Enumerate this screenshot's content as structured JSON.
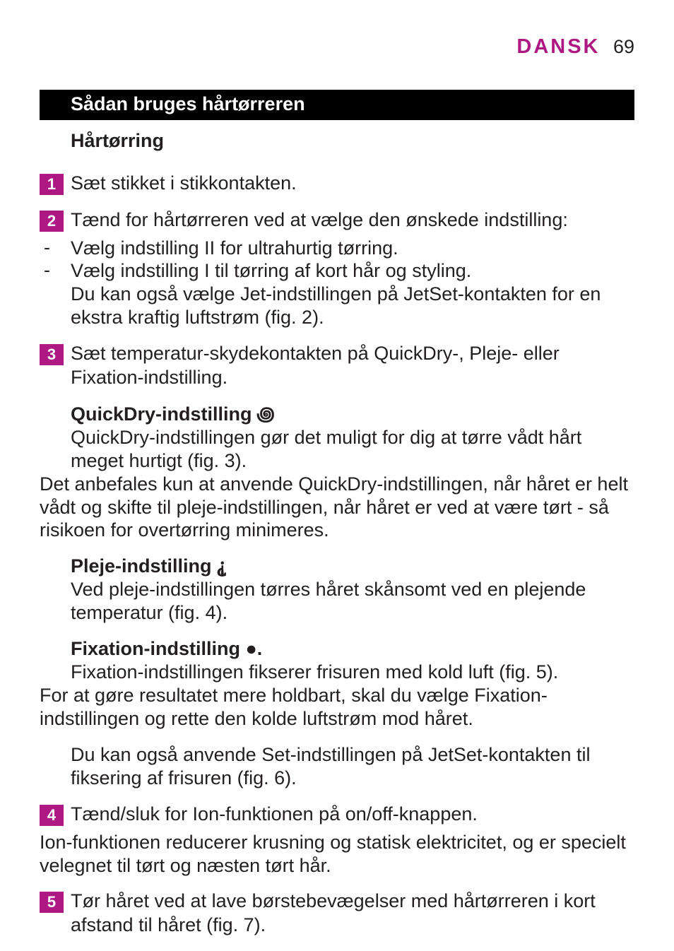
{
  "header": {
    "brand": "DANSK",
    "page_number": "69",
    "brand_color": "#ae1883",
    "text_color": "#231f20",
    "background_color": "#ffffff",
    "brand_fontsize": 29,
    "page_fontsize": 27
  },
  "section_bar": {
    "title": "Sådan bruges hårtørreren",
    "background_color": "#000000",
    "text_color": "#ffffff",
    "fontsize": 27
  },
  "subheading": {
    "text": "Hårtørring",
    "fontsize": 27
  },
  "steps": {
    "step1": {
      "num": "1",
      "text": "Sæt stikket i stikkontakten."
    },
    "step2": {
      "num": "2",
      "text": "Tænd for hårtørreren ved at vælge den ønskede indstilling:",
      "bullets": [
        "Vælg indstilling II for ultrahurtig tørring.",
        "Vælg indstilling I til tørring af kort hår og styling."
      ],
      "after_bullets": "Du kan også vælge Jet-indstillingen på JetSet-kontakten for en ekstra kraftig luftstrøm (fig. 2)."
    },
    "step3": {
      "num": "3",
      "text": "Sæt temperatur-skydekontakten på QuickDry-, Pleje- eller Fixation-indstilling."
    },
    "quickdry": {
      "title_prefix": "QuickDry-indstilling",
      "title_icon": " ꩜",
      "body": "QuickDry-indstillingen gør det muligt for dig at tørre vådt hårt meget hurtigt (fig. 3).",
      "flush": "Det anbefales kun at anvende QuickDry-indstillingen, når håret er helt vådt og skifte til pleje-indstillingen, når håret er ved at være tørt - så risikoen for overtørring minimeres."
    },
    "pleje": {
      "title_prefix": "Pleje-indstilling",
      "title_icon": " ⸘",
      "body": "Ved pleje-indstillingen tørres håret skånsomt ved en plejende temperatur (fig. 4)."
    },
    "fixation": {
      "title_prefix": "Fixation-indstilling",
      "title_icon": " ●.",
      "body": "Fixation-indstillingen fikserer frisuren med kold luft (fig. 5).",
      "flush": "For at gøre resultatet mere holdbart, skal du vælge Fixation-indstillingen og rette den kolde luftstrøm mod håret.",
      "after": "Du kan også anvende Set-indstillingen på JetSet-kontakten til fiksering af frisuren (fig. 6)."
    },
    "step4": {
      "num": "4",
      "text": "Tænd/sluk for Ion-funktionen på on/off-knappen.",
      "flush": "Ion-funktionen reducerer krusning og statisk elektricitet, og er specielt velegnet til tørt og næsten tørt hår."
    },
    "step5": {
      "num": "5",
      "text": "Tør håret ved at lave børstebevægelser med hårtørreren i kort afstand til håret (fig. 7)."
    }
  },
  "step_number_style": {
    "background_color": "#ae1883",
    "text_color": "#ffffff",
    "width": 34,
    "height": 30,
    "fontsize": 22
  },
  "body_text": {
    "fontsize": 27,
    "line_height": 1.22,
    "color": "#231f20"
  }
}
